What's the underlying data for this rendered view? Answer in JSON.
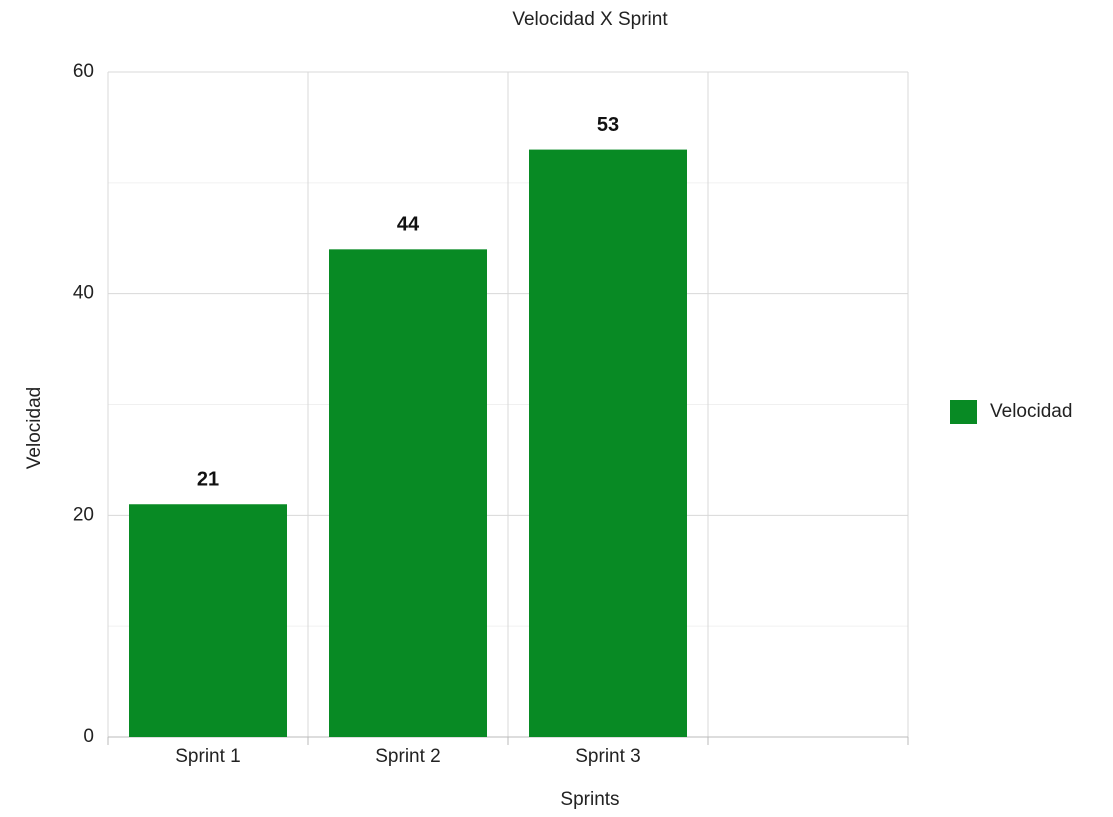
{
  "chart_data": {
    "type": "bar",
    "title": "Velocidad X Sprint",
    "x_label": "Sprints",
    "y_label": "Velocidad",
    "categories": [
      "Sprint 1",
      "Sprint 2",
      "Sprint 3",
      null
    ],
    "series": [
      {
        "name": "Velocidad",
        "color": "#088a24",
        "values": [
          21,
          44,
          53,
          null
        ]
      }
    ],
    "ylim": [
      0,
      60
    ],
    "yticks": [
      0,
      20,
      40,
      60
    ],
    "minor_yticks": [
      10,
      30,
      50
    ],
    "grid": true,
    "legend": "right"
  }
}
